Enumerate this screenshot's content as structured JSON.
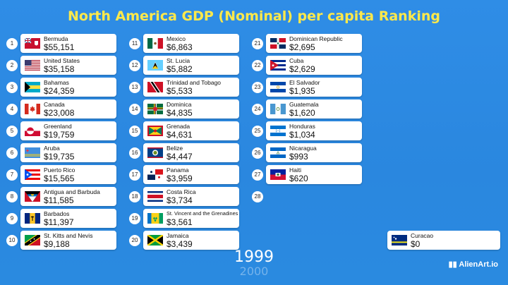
{
  "title": "North America GDP (Nominal) per capita Ranking",
  "year": "1999",
  "next_year": "2000",
  "brand": "AlienArt.io",
  "columns": [
    [
      {
        "rank": "1",
        "name": "Bermuda",
        "value": "$55,151",
        "flag": "bermuda"
      },
      {
        "rank": "2",
        "name": "United States",
        "value": "$35,158",
        "flag": "usa"
      },
      {
        "rank": "3",
        "name": "Bahamas",
        "value": "$24,359",
        "flag": "bahamas"
      },
      {
        "rank": "4",
        "name": "Canada",
        "value": "$23,008",
        "flag": "canada"
      },
      {
        "rank": "5",
        "name": "Greenland",
        "value": "$19,759",
        "flag": "greenland"
      },
      {
        "rank": "6",
        "name": "Aruba",
        "value": "$19,735",
        "flag": "aruba"
      },
      {
        "rank": "7",
        "name": "Puerto Rico",
        "value": "$15,565",
        "flag": "puertorico"
      },
      {
        "rank": "8",
        "name": "Antigua and Barbuda",
        "value": "$11,585",
        "flag": "antigua"
      },
      {
        "rank": "9",
        "name": "Barbados",
        "value": "$11,397",
        "flag": "barbados"
      },
      {
        "rank": "10",
        "name": "St. Kitts and Nevis",
        "value": "$9,188",
        "flag": "stkitts"
      }
    ],
    [
      {
        "rank": "11",
        "name": "Mexico",
        "value": "$6,863",
        "flag": "mexico"
      },
      {
        "rank": "12",
        "name": "St. Lucia",
        "value": "$5,882",
        "flag": "stlucia"
      },
      {
        "rank": "13",
        "name": "Trinidad and Tobago",
        "value": "$5,533",
        "flag": "trinidad"
      },
      {
        "rank": "14",
        "name": "Dominica",
        "value": "$4,835",
        "flag": "dominica"
      },
      {
        "rank": "15",
        "name": "Grenada",
        "value": "$4,631",
        "flag": "grenada"
      },
      {
        "rank": "16",
        "name": "Belize",
        "value": "$4,447",
        "flag": "belize"
      },
      {
        "rank": "17",
        "name": "Panama",
        "value": "$3,959",
        "flag": "panama"
      },
      {
        "rank": "18",
        "name": "Costa Rica",
        "value": "$3,734",
        "flag": "costarica"
      },
      {
        "rank": "19",
        "name": "St. Vincent and the Grenadines",
        "value": "$3,561",
        "flag": "stvincent"
      },
      {
        "rank": "20",
        "name": "Jamaica",
        "value": "$3,439",
        "flag": "jamaica"
      }
    ],
    [
      {
        "rank": "21",
        "name": "Dominican Republic",
        "value": "$2,695",
        "flag": "dominicanrep"
      },
      {
        "rank": "22",
        "name": "Cuba",
        "value": "$2,629",
        "flag": "cuba"
      },
      {
        "rank": "23",
        "name": "El Salvador",
        "value": "$1,935",
        "flag": "elsalvador"
      },
      {
        "rank": "24",
        "name": "Guatemala",
        "value": "$1,620",
        "flag": "guatemala"
      },
      {
        "rank": "25",
        "name": "Honduras",
        "value": "$1,034",
        "flag": "honduras"
      },
      {
        "rank": "26",
        "name": "Nicaragua",
        "value": "$993",
        "flag": "nicaragua"
      },
      {
        "rank": "27",
        "name": "Haiti",
        "value": "$620",
        "flag": "haiti"
      },
      {
        "rank": "28",
        "name": "",
        "value": "",
        "flag": ""
      }
    ]
  ],
  "extra": {
    "name": "Curacao",
    "value": "$0",
    "flag": "curacao"
  }
}
